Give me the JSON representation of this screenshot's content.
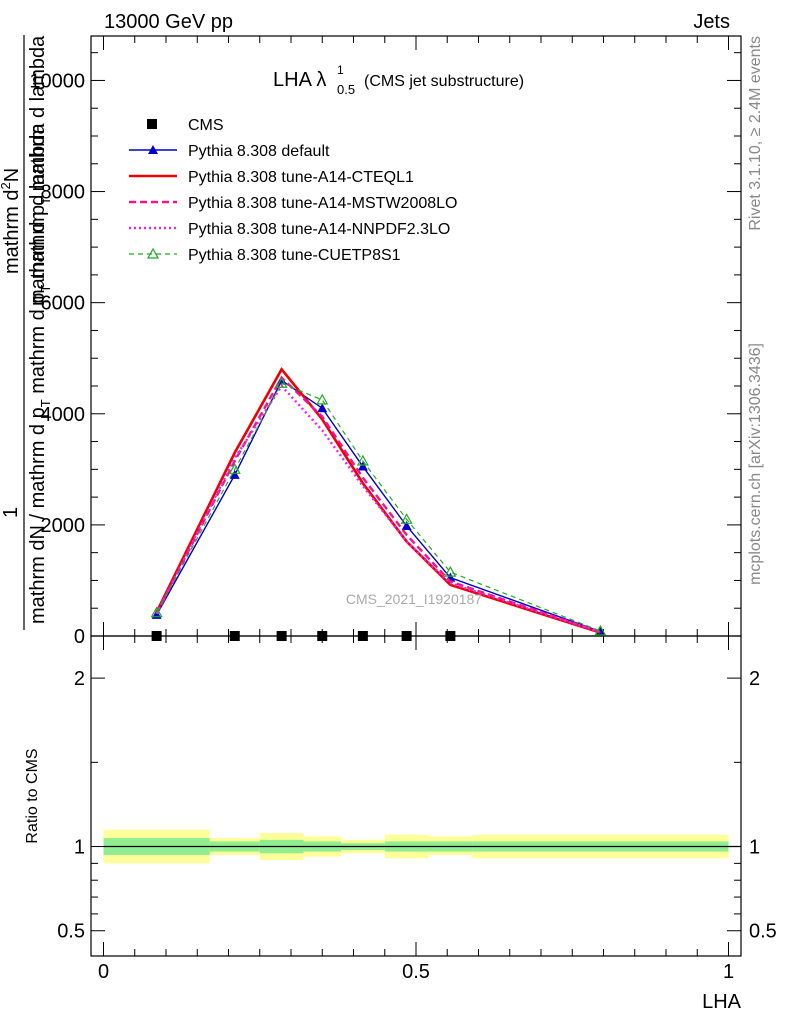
{
  "header": {
    "left": "13000 GeV pp",
    "right": "Jets"
  },
  "side_labels": {
    "rivet": "Rivet 3.1.10, ≥ 2.4M events",
    "mcplots": "mcplots.cern.ch [arXiv:1306.3436]"
  },
  "watermark": "CMS_2021_I1920187",
  "main_title": {
    "text": "LHA λ",
    "sup": "1",
    "sub": "0.5",
    "suffix": "(CMS jet substructure)"
  },
  "ylabel_top": {
    "num_a": "mathrm d",
    "num_a_sup": "2",
    "num_a_rest": "N",
    "den_a": "mathrm d p",
    "den_a_sub": "T",
    "den_a_rest": " mathrm d lambda",
    "one": "1",
    "den_b": "mathrm dN / mathrm d p",
    "den_b_sub": "T",
    "den_b_rest": " mathrm d p",
    "den_b_sub2": "T",
    "den_b_rest2": " mathrm d lambda"
  },
  "ratio_ylabel": "Ratio to CMS",
  "xlabel": "LHA",
  "colors": {
    "data": "#000000",
    "default": "#0000cc",
    "cteql1": "#ee0000",
    "mstw": "#ee1493",
    "nnpdf": "#ee22ee",
    "cuetp8s1": "#22aa22",
    "band_inner": "#90ee90",
    "band_outer": "#ffff99"
  },
  "chart_data": [
    {
      "type": "line",
      "title": "LHA λ^1_0.5 (CMS jet substructure)",
      "xlim": [
        -0.02,
        1.02
      ],
      "ylim": [
        0,
        10800
      ],
      "y_ticks": [
        0,
        2000,
        4000,
        6000,
        8000,
        10000
      ],
      "y_tick_labels": [
        "0",
        "2000",
        "4000",
        "6000",
        "8000",
        "10000"
      ],
      "x": [
        0.085,
        0.21,
        0.285,
        0.35,
        0.415,
        0.485,
        0.555,
        0.795
      ],
      "series": [
        {
          "name": "CMS",
          "key": "data",
          "x": [
            0.085,
            0.21,
            0.285,
            0.35,
            0.415,
            0.485,
            0.555
          ],
          "values": [
            0,
            0,
            0,
            0,
            0,
            0,
            0
          ]
        },
        {
          "name": "Pythia 8.308 default",
          "key": "default",
          "values": [
            380,
            2900,
            4600,
            4100,
            3050,
            1980,
            1050,
            80
          ]
        },
        {
          "name": "Pythia 8.308 tune-A14-CTEQL1",
          "key": "cteql1",
          "values": [
            430,
            3300,
            4800,
            3900,
            2750,
            1700,
            920,
            60
          ]
        },
        {
          "name": "Pythia 8.308 tune-A14-MSTW2008LO",
          "key": "mstw",
          "values": [
            410,
            3150,
            4650,
            3950,
            2850,
            1820,
            980,
            70
          ]
        },
        {
          "name": "Pythia 8.308 tune-A14-NNPDF2.3LO",
          "key": "nnpdf",
          "values": [
            400,
            3200,
            4500,
            3700,
            2700,
            1700,
            950,
            70
          ]
        },
        {
          "name": "Pythia 8.308 tune-CUETP8S1",
          "key": "cuetp8s1",
          "values": [
            420,
            3000,
            4550,
            4250,
            3150,
            2100,
            1150,
            90
          ]
        }
      ]
    },
    {
      "type": "area",
      "ylabel": "Ratio to CMS",
      "xlabel": "LHA",
      "xlim": [
        -0.02,
        1.02
      ],
      "ylim": [
        0.35,
        2.25
      ],
      "x_ticks": [
        0,
        0.5,
        1
      ],
      "x_tick_labels": [
        "0",
        "0.5",
        "1"
      ],
      "y_ticks": [
        0.5,
        1,
        2
      ],
      "y_tick_labels": [
        "0.5",
        "1",
        "2"
      ],
      "bins": [
        {
          "lo": 0.0,
          "hi": 0.17,
          "inner": [
            0.95,
            1.05
          ],
          "outer": [
            0.9,
            1.1
          ]
        },
        {
          "lo": 0.17,
          "hi": 0.25,
          "inner": [
            0.97,
            1.03
          ],
          "outer": [
            0.95,
            1.05
          ]
        },
        {
          "lo": 0.25,
          "hi": 0.32,
          "inner": [
            0.96,
            1.04
          ],
          "outer": [
            0.92,
            1.08
          ]
        },
        {
          "lo": 0.32,
          "hi": 0.38,
          "inner": [
            0.97,
            1.03
          ],
          "outer": [
            0.94,
            1.06
          ]
        },
        {
          "lo": 0.38,
          "hi": 0.45,
          "inner": [
            0.98,
            1.02
          ],
          "outer": [
            0.96,
            1.04
          ]
        },
        {
          "lo": 0.45,
          "hi": 0.52,
          "inner": [
            0.97,
            1.03
          ],
          "outer": [
            0.93,
            1.07
          ]
        },
        {
          "lo": 0.52,
          "hi": 0.59,
          "inner": [
            0.97,
            1.03
          ],
          "outer": [
            0.95,
            1.06
          ]
        },
        {
          "lo": 0.59,
          "hi": 1.0,
          "inner": [
            0.97,
            1.03
          ],
          "outer": [
            0.93,
            1.07
          ]
        }
      ]
    }
  ]
}
